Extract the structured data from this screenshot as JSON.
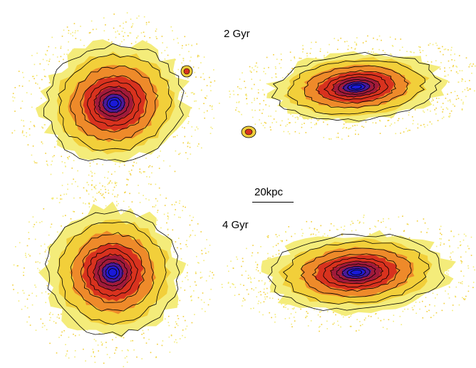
{
  "labels": {
    "top_time": "2 Gyr",
    "bottom_time": "4 Gyr",
    "scale": "20kpc"
  },
  "colors": {
    "outer": "#f4ec7a",
    "yellow": "#f2cf3a",
    "orange": "#ee8a2a",
    "red": "#d8321e",
    "deep_red": "#a01a3a",
    "purple": "#4a1a9a",
    "core": "#1a1ad8",
    "contour": "#000000"
  },
  "panels": [
    {
      "name": "top-left",
      "time": "2 Gyr",
      "view": "face-on"
    },
    {
      "name": "top-right",
      "time": "2 Gyr",
      "view": "edge-on"
    },
    {
      "name": "bottom-left",
      "time": "4 Gyr",
      "view": "face-on"
    },
    {
      "name": "bottom-right",
      "time": "4 Gyr",
      "view": "edge-on"
    }
  ]
}
